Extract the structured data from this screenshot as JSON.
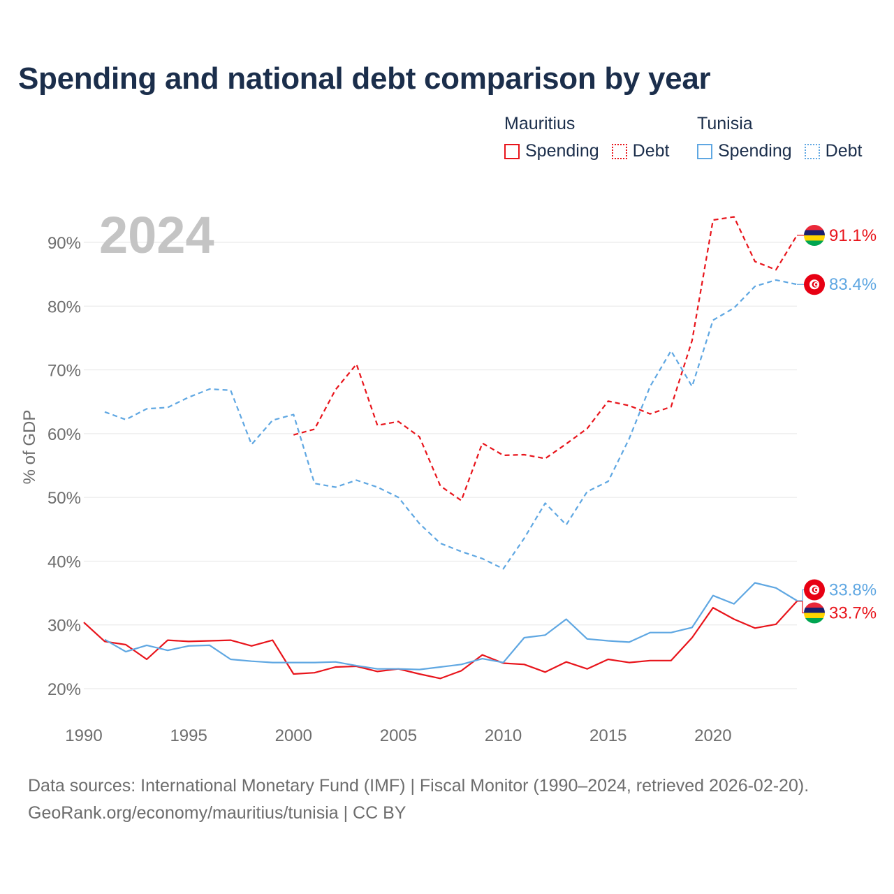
{
  "chart_data": {
    "type": "line",
    "title": "Spending and national debt comparison by year",
    "year_label": "2024",
    "ylabel": "% of GDP",
    "xlabel": "",
    "xlim": [
      1990,
      2024
    ],
    "ylim": [
      15,
      95
    ],
    "y_ticks": [
      20,
      30,
      40,
      50,
      60,
      70,
      80,
      90
    ],
    "y_tick_labels": [
      "20%",
      "30%",
      "40%",
      "50%",
      "60%",
      "70%",
      "80%",
      "90%"
    ],
    "x_ticks": [
      1990,
      1995,
      2000,
      2005,
      2010,
      2015,
      2020
    ],
    "x_tick_labels": [
      "1990",
      "1995",
      "2000",
      "2005",
      "2010",
      "2015",
      "2020"
    ],
    "grid": true,
    "legend": {
      "groups": [
        {
          "country": "Mauritius",
          "color": "#e8141b",
          "items": [
            "Spending",
            "Debt"
          ]
        },
        {
          "country": "Tunisia",
          "color": "#5fa7e2",
          "items": [
            "Spending",
            "Debt"
          ]
        }
      ]
    },
    "series": [
      {
        "name": "Mauritius Spending",
        "country": "Mauritius",
        "metric": "Spending",
        "color": "#e8141b",
        "dash": false,
        "x": [
          1990,
          1991,
          1992,
          1993,
          1994,
          1995,
          1996,
          1997,
          1998,
          1999,
          2000,
          2001,
          2002,
          2003,
          2004,
          2005,
          2006,
          2007,
          2008,
          2009,
          2010,
          2011,
          2012,
          2013,
          2014,
          2015,
          2016,
          2017,
          2018,
          2019,
          2020,
          2021,
          2022,
          2023,
          2024
        ],
        "values": [
          30.4,
          27.4,
          26.9,
          24.6,
          27.6,
          27.4,
          27.5,
          27.6,
          26.7,
          27.6,
          22.3,
          22.5,
          23.4,
          23.5,
          22.7,
          23.1,
          22.3,
          21.6,
          22.8,
          25.3,
          24.0,
          23.8,
          22.6,
          24.2,
          23.1,
          24.6,
          24.1,
          24.4,
          24.4,
          28.0,
          32.7,
          30.9,
          29.5,
          30.1,
          33.7
        ],
        "end_label": "33.7%"
      },
      {
        "name": "Mauritius Debt",
        "country": "Mauritius",
        "metric": "Debt",
        "color": "#e8141b",
        "dash": true,
        "x": [
          2000,
          2001,
          2002,
          2003,
          2004,
          2005,
          2006,
          2007,
          2008,
          2009,
          2010,
          2011,
          2012,
          2013,
          2014,
          2015,
          2016,
          2017,
          2018,
          2019,
          2020,
          2021,
          2022,
          2023,
          2024
        ],
        "values": [
          59.8,
          60.7,
          66.9,
          70.9,
          61.3,
          61.9,
          59.5,
          51.8,
          49.5,
          58.5,
          56.6,
          56.7,
          56.1,
          58.4,
          60.8,
          65.1,
          64.4,
          63.1,
          64.2,
          74.6,
          93.5,
          94.0,
          87.0,
          85.7,
          91.1
        ],
        "end_label": "91.1%"
      },
      {
        "name": "Tunisia Spending",
        "country": "Tunisia",
        "metric": "Spending",
        "color": "#5fa7e2",
        "dash": false,
        "x": [
          1991,
          1992,
          1993,
          1994,
          1995,
          1996,
          1997,
          1998,
          1999,
          2000,
          2001,
          2002,
          2003,
          2004,
          2005,
          2006,
          2007,
          2008,
          2009,
          2010,
          2011,
          2012,
          2013,
          2014,
          2015,
          2016,
          2017,
          2018,
          2019,
          2020,
          2021,
          2022,
          2023,
          2024
        ],
        "values": [
          27.7,
          25.8,
          26.8,
          26.0,
          26.7,
          26.8,
          24.6,
          24.3,
          24.1,
          24.1,
          24.1,
          24.2,
          23.6,
          23.1,
          23.1,
          23.0,
          23.4,
          23.8,
          24.7,
          24.1,
          28.0,
          28.4,
          30.9,
          27.8,
          27.5,
          27.3,
          28.8,
          28.8,
          29.6,
          34.6,
          33.3,
          36.6,
          35.8,
          33.8
        ],
        "end_label": "33.8%"
      },
      {
        "name": "Tunisia Debt",
        "country": "Tunisia",
        "metric": "Debt",
        "color": "#5fa7e2",
        "dash": true,
        "x": [
          1991,
          1992,
          1993,
          1994,
          1995,
          1996,
          1997,
          1998,
          1999,
          2000,
          2001,
          2002,
          2003,
          2004,
          2005,
          2006,
          2007,
          2008,
          2009,
          2010,
          2011,
          2012,
          2013,
          2014,
          2015,
          2016,
          2017,
          2018,
          2019,
          2020,
          2021,
          2022,
          2023,
          2024
        ],
        "values": [
          63.4,
          62.2,
          63.9,
          64.1,
          65.7,
          67.0,
          66.8,
          58.3,
          62.1,
          63.0,
          52.2,
          51.6,
          52.7,
          51.6,
          50.0,
          45.9,
          42.8,
          41.5,
          40.4,
          38.8,
          43.6,
          49.1,
          45.7,
          50.9,
          52.5,
          59.2,
          67.4,
          73.0,
          67.4,
          77.8,
          79.7,
          83.1,
          84.1,
          83.4
        ],
        "end_label": "83.4%"
      }
    ]
  },
  "footer": {
    "line1": "Data sources: International Monetary Fund (IMF) | Fiscal Monitor (1990–2024, retrieved 2026-02-20).",
    "line2": "GeoRank.org/economy/mauritius/tunisia | CC BY"
  }
}
